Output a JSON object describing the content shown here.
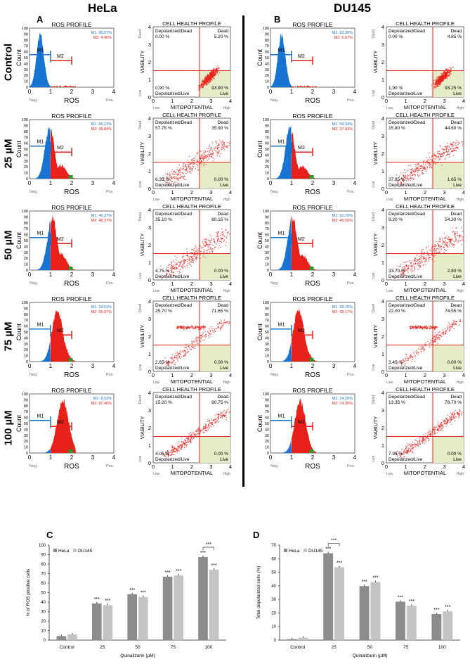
{
  "cells": [
    "HeLa",
    "DU145"
  ],
  "panels": [
    "A",
    "B",
    "C",
    "D"
  ],
  "rows": [
    "Control",
    "25 µM",
    "50 µM",
    "75 µM",
    "100 µM"
  ],
  "ros": {
    "title": "ROS PROFILE",
    "xlabel": "ROS",
    "ylabel": "Count",
    "neg": "Neg.",
    "pos": "Pos.",
    "m1": "M1",
    "m2": "M2",
    "values": {
      "HeLa": [
        [
          "M1: 95.07%",
          "M2: 4.40%"
        ],
        [
          "M1: 55.21%",
          "M2: 38.84%"
        ],
        [
          "M1: 46.37%",
          "M2: 48.37%"
        ],
        [
          "M1: 29.53%",
          "M2: 66.87%"
        ],
        [
          "M1: 8.53%",
          "M2: 87.40%"
        ]
      ],
      "DU145": [
        [
          "M1: 93.30%",
          "M2: 6.07%"
        ],
        [
          "M1: 59.33%",
          "M2: 37.03%"
        ],
        [
          "M1: 52.70%",
          "M2: 45.50%"
        ],
        [
          "M1: 28.70%",
          "M2: 68.17%"
        ],
        [
          "M1: 24.20%",
          "M2: 74.30%"
        ]
      ]
    }
  },
  "health": {
    "title": "CELL HEALTH PROFILE",
    "xlabel": "MITOPOTENTIAL",
    "ylabel": "VIABILITY",
    "low": "Low",
    "high": "High",
    "dead_axis": "Dead",
    "live_axis": "Live",
    "q_labels": [
      "Depolarized/Dead",
      "Dead",
      "Depolarized/Live",
      "Live"
    ],
    "values": {
      "HeLa": [
        [
          "0.00 %",
          "5.20 %",
          "0.90 %",
          "93.90 %"
        ],
        [
          "57.75 %",
          "35.90 %",
          "6.35 %",
          "0.00 %"
        ],
        [
          "35.10 %",
          "60.15 %",
          "4.75 %",
          "0.00 %"
        ],
        [
          "25.70 %",
          "71.65 %",
          "2.65 %",
          "0.00 %"
        ],
        [
          "15.20 %",
          "80.75 %",
          "4.05 %",
          "0.00 %"
        ]
      ],
      "DU145": [
        [
          "0.00 %",
          "4.85 %",
          "1.90 %",
          "93.25 %"
        ],
        [
          "15.80 %",
          "44.60 %",
          "37.95 %",
          "1.65 %"
        ],
        [
          "9.20 %",
          "54.30 %",
          "33.70 %",
          "2.80 %"
        ],
        [
          "22.00 %",
          "74.55 %",
          "3.45 %",
          "0.00 %"
        ],
        [
          "13.35 %",
          "78.70 %",
          "7.95 %",
          "0.00 %"
        ]
      ]
    }
  },
  "colors": {
    "m1": "#1874d2",
    "m2": "#e8201a",
    "green": "#2a9a2a",
    "live_fill": "#e4edc8",
    "hela_bar": "#8c8c8c",
    "du_bar": "#c4c4c4"
  },
  "chart_data": [
    {
      "type": "bar",
      "panel": "C",
      "categories": [
        "Control",
        "25",
        "50",
        "75",
        "100"
      ],
      "xlabel": "Quinalizarin (µM)",
      "ylabel": "% of ROS positive cells",
      "ylim": [
        0,
        100
      ],
      "yticks": [
        0,
        10,
        20,
        30,
        40,
        50,
        60,
        70,
        80,
        90,
        100
      ],
      "series": [
        {
          "name": "HeLa",
          "values": [
            4.2,
            38.6,
            48.3,
            66.8,
            87.4
          ],
          "sig": [
            "",
            "***",
            "***",
            "***",
            "***"
          ]
        },
        {
          "name": "DU145",
          "values": [
            6.0,
            36.9,
            45.4,
            68.2,
            74.1
          ],
          "sig": [
            "",
            "***",
            "***",
            "***",
            "***"
          ]
        }
      ],
      "bracket": {
        "category": "100",
        "label": "***"
      }
    },
    {
      "type": "bar",
      "panel": "D",
      "categories": [
        "Control",
        "25",
        "50",
        "75",
        "100"
      ],
      "xlabel": "Quinalizarin (µM)",
      "ylabel": "Total depolarized cells (%)",
      "ylim": [
        0,
        70
      ],
      "yticks": [
        0,
        10,
        20,
        30,
        40,
        50,
        60,
        70
      ],
      "series": [
        {
          "name": "HeLa",
          "values": [
            0.7,
            64.0,
            39.8,
            28.3,
            19.2
          ],
          "sig": [
            "",
            "***",
            "***",
            "***",
            "***"
          ]
        },
        {
          "name": "DU145",
          "values": [
            1.8,
            53.7,
            42.8,
            25.3,
            21.2
          ],
          "sig": [
            "",
            "***",
            "***",
            "***",
            "***"
          ]
        }
      ],
      "bracket": {
        "category": "25",
        "label": "***"
      }
    }
  ]
}
